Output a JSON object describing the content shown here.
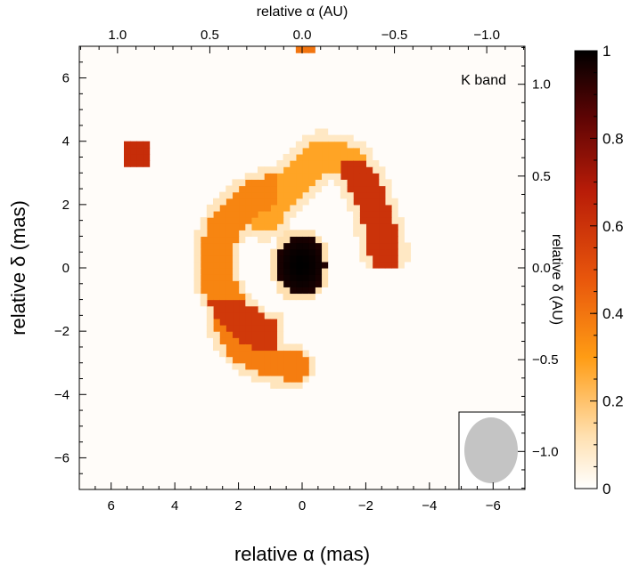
{
  "chart_data": {
    "type": "heatmap",
    "title": "",
    "band_label": "K band",
    "xlabel_bottom": "relative α (mas)",
    "ylabel_left": "relative δ (mas)",
    "xlabel_top": "relative α (AU)",
    "ylabel_right": "relative δ (AU)",
    "xlim_mas": [
      7,
      -7
    ],
    "ylim_mas": [
      -7,
      7
    ],
    "x_ticks_mas": [
      "6",
      "4",
      "2",
      "0",
      "−2",
      "−4",
      "−6"
    ],
    "y_ticks_mas": [
      "6",
      "4",
      "2",
      "0",
      "−2",
      "−4",
      "−6"
    ],
    "x_ticks_au": [
      "1.0",
      "0.5",
      "0.0",
      "−0.5",
      "−1.0"
    ],
    "y_ticks_au": [
      "1.0",
      "0.5",
      "0.0",
      "−0.5",
      "−1.0"
    ],
    "colorbar": {
      "min": 0,
      "max": 1,
      "ticks": [
        "0",
        "0.2",
        "0.4",
        "0.6",
        "0.8",
        "1"
      ],
      "colors": [
        "#ffffff",
        "#ffe0b0",
        "#ff9c14",
        "#e8560c",
        "#b81c08",
        "#5c0404",
        "#000000"
      ]
    },
    "beam": {
      "shape": "ellipse",
      "color": "#c4c4c4"
    },
    "emission_regions": [
      {
        "name": "central source",
        "x_mas": 0.1,
        "y_mas": 0.1,
        "intensity": 1.0
      },
      {
        "name": "upper arc",
        "x_mas": -0.6,
        "y_mas": 2.6,
        "intensity": 0.3
      },
      {
        "name": "upper arc bright tip",
        "x_mas": -2.0,
        "y_mas": 1.5,
        "intensity": 0.6
      },
      {
        "name": "left ring",
        "x_mas": 2.5,
        "y_mas": 0.0,
        "intensity": 0.35
      },
      {
        "name": "left ring bright knot",
        "x_mas": 2.5,
        "y_mas": -1.6,
        "intensity": 0.6
      },
      {
        "name": "lower arm",
        "x_mas": 1.4,
        "y_mas": -2.6,
        "intensity": 0.35
      },
      {
        "name": "isolated patch",
        "x_mas": 5.1,
        "y_mas": 3.6,
        "intensity": 0.6
      },
      {
        "name": "top edge patch",
        "x_mas": -0.2,
        "y_mas": 6.9,
        "intensity": 0.4
      }
    ]
  }
}
